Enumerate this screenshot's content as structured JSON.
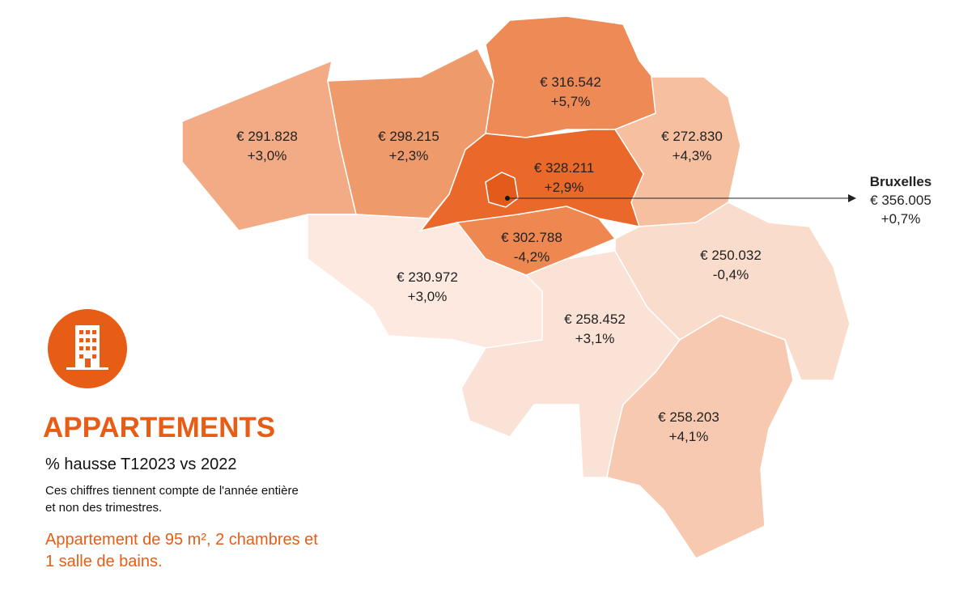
{
  "title": "APPARTEMENTS",
  "subtitle": "% hausse T12023 vs 2022",
  "note_lines": [
    "Ces chiffres tiennent compte de l'année entière",
    "et non des trimestres."
  ],
  "description_lines": [
    "Appartement de 95 m², 2 chambres et",
    "1 salle de bains."
  ],
  "regions": [
    {
      "price": "€ 291.828",
      "change": "+3,0%"
    },
    {
      "price": "€ 298.215",
      "change": "+2,3%"
    },
    {
      "price": "€ 316.542",
      "change": "+5,7%"
    },
    {
      "price": "€ 272.830",
      "change": "+4,3%"
    },
    {
      "price": "€ 328.211",
      "change": "+2,9%"
    },
    {
      "price": "€ 302.788",
      "change": "-4,2%"
    },
    {
      "price": "€ 230.972",
      "change": "+3,0%"
    },
    {
      "price": "€ 258.452",
      "change": "+3,1%"
    },
    {
      "price": "€ 250.032",
      "change": "-0,4%"
    },
    {
      "price": "€ 258.203",
      "change": "+4,1%"
    }
  ],
  "brussels": {
    "name": "Bruxelles",
    "price": "€ 356.005",
    "change": "+0,7%"
  }
}
